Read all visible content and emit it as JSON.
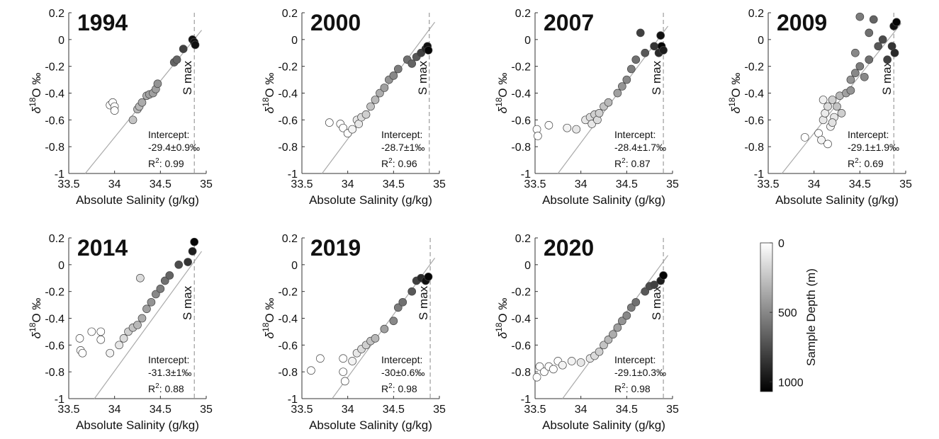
{
  "chart_data": [
    {
      "type": "scatter",
      "title": "1994",
      "xlabel": "Absolute Salinity (g/kg)",
      "ylabel": {
        "delta": "δ",
        "sup": "18",
        "rest": "O ‰"
      },
      "xlim": [
        33.5,
        35
      ],
      "xticks": [
        33.5,
        34,
        34.5,
        35
      ],
      "ylim": [
        -1,
        0.2
      ],
      "yticks": [
        -1,
        -0.8,
        -0.6,
        -0.4,
        -0.2,
        0,
        0.2
      ],
      "x": [
        33.95,
        33.98,
        34.0,
        34.0,
        34.2,
        34.25,
        34.27,
        34.3,
        34.35,
        34.38,
        34.42,
        34.45,
        34.47,
        34.65,
        34.68,
        34.75,
        34.85,
        34.87,
        34.88
      ],
      "y": [
        -0.49,
        -0.47,
        -0.5,
        -0.53,
        -0.6,
        -0.52,
        -0.5,
        -0.47,
        -0.42,
        -0.41,
        -0.4,
        -0.37,
        -0.33,
        -0.17,
        -0.15,
        -0.07,
        0,
        -0.02,
        -0.04
      ],
      "depth": [
        0,
        0,
        0,
        0,
        250,
        300,
        300,
        350,
        350,
        400,
        400,
        400,
        450,
        650,
        650,
        800,
        1000,
        1000,
        1000
      ],
      "fit_line": {
        "x": [
          33.68,
          34.95
        ],
        "y": [
          -1,
          0.07
        ]
      },
      "smax": {
        "value": 34.87,
        "label": "S max"
      },
      "intercept": {
        "label": "Intercept:",
        "text": "-29.4±0.9‰"
      },
      "r2": {
        "label": "R",
        "sup": "2",
        "text": ": 0.99"
      }
    },
    {
      "type": "scatter",
      "title": "2000",
      "xlabel": "Absolute Salinity (g/kg)",
      "ylabel": {
        "delta": "δ",
        "sup": "18",
        "rest": "O ‰"
      },
      "xlim": [
        33.5,
        35
      ],
      "xticks": [
        33.5,
        34,
        34.5,
        35
      ],
      "ylim": [
        -1,
        0.2
      ],
      "yticks": [
        -1,
        -0.8,
        -0.6,
        -0.4,
        -0.2,
        0,
        0.2
      ],
      "x": [
        33.8,
        33.92,
        33.95,
        34.0,
        34.05,
        34.1,
        34.12,
        34.15,
        34.2,
        34.25,
        34.3,
        34.35,
        34.4,
        34.45,
        34.5,
        34.55,
        34.65,
        34.7,
        34.75,
        34.8,
        34.85,
        34.87,
        34.88
      ],
      "y": [
        -0.62,
        -0.63,
        -0.66,
        -0.7,
        -0.67,
        -0.6,
        -0.63,
        -0.58,
        -0.56,
        -0.5,
        -0.45,
        -0.4,
        -0.36,
        -0.3,
        -0.27,
        -0.22,
        -0.15,
        -0.18,
        -0.13,
        -0.1,
        -0.07,
        -0.05,
        -0.08
      ],
      "depth": [
        0,
        0,
        0,
        0,
        50,
        100,
        100,
        150,
        200,
        250,
        300,
        350,
        400,
        450,
        500,
        550,
        600,
        650,
        700,
        800,
        900,
        1000,
        1050
      ],
      "fit_line": {
        "x": [
          33.72,
          34.95
        ],
        "y": [
          -1,
          0.13
        ]
      },
      "smax": {
        "value": 34.89,
        "label": "S max"
      },
      "intercept": {
        "label": "Intercept:",
        "text": "-28.7±1‰"
      },
      "r2": {
        "label": "R",
        "sup": "2",
        "text": ": 0.96"
      }
    },
    {
      "type": "scatter",
      "title": "2007",
      "xlabel": "Absolute Salinity (g/kg)",
      "ylabel": {
        "delta": "δ",
        "sup": "18",
        "rest": "O ‰"
      },
      "xlim": [
        33.5,
        35
      ],
      "xticks": [
        33.5,
        34,
        34.5,
        35
      ],
      "ylim": [
        -1,
        0.2
      ],
      "yticks": [
        -1,
        -0.8,
        -0.6,
        -0.4,
        -0.2,
        0,
        0.2
      ],
      "x": [
        33.52,
        33.53,
        33.65,
        33.85,
        33.95,
        34.05,
        34.1,
        34.12,
        34.15,
        34.18,
        34.2,
        34.25,
        34.3,
        34.4,
        34.45,
        34.5,
        34.55,
        34.6,
        34.65,
        34.7,
        34.8,
        34.85,
        34.87,
        34.88,
        34.9
      ],
      "y": [
        -0.67,
        -0.72,
        -0.64,
        -0.66,
        -0.67,
        -0.6,
        -0.58,
        -0.63,
        -0.56,
        -0.6,
        -0.55,
        -0.5,
        -0.47,
        -0.4,
        -0.35,
        -0.3,
        -0.22,
        -0.15,
        0.05,
        -0.1,
        -0.05,
        -0.1,
        0.03,
        -0.05,
        -0.08
      ],
      "depth": [
        0,
        0,
        0,
        50,
        100,
        100,
        150,
        100,
        200,
        150,
        200,
        250,
        300,
        400,
        450,
        500,
        550,
        600,
        800,
        700,
        850,
        900,
        1000,
        1050,
        950
      ],
      "fit_line": {
        "x": [
          33.75,
          34.95
        ],
        "y": [
          -1,
          0.1
        ]
      },
      "smax": {
        "value": 34.9,
        "label": "S max"
      },
      "intercept": {
        "label": "Intercept:",
        "text": "-28.4±1.7‰"
      },
      "r2": {
        "label": "R",
        "sup": "2",
        "text": ": 0.87"
      }
    },
    {
      "type": "scatter",
      "title": "2009",
      "xlabel": "Absolute Salinity (g/kg)",
      "ylabel": {
        "delta": "δ",
        "sup": "18",
        "rest": "O ‰"
      },
      "xlim": [
        33.5,
        35
      ],
      "xticks": [
        33.5,
        34,
        34.5,
        35
      ],
      "ylim": [
        -1,
        0.2
      ],
      "yticks": [
        -1,
        -0.8,
        -0.6,
        -0.4,
        -0.2,
        0,
        0.2
      ],
      "x": [
        33.9,
        34.05,
        34.08,
        34.1,
        34.12,
        34.15,
        34.18,
        34.2,
        34.22,
        34.25,
        34.28,
        34.3,
        34.15,
        34.1,
        34.2,
        34.35,
        34.4,
        34.45,
        34.5,
        34.55,
        34.6,
        34.4,
        34.5,
        34.65,
        34.7,
        34.75,
        34.8,
        34.85,
        34.87,
        34.88,
        34.6,
        34.45,
        34.9
      ],
      "y": [
        -0.73,
        -0.7,
        -0.75,
        -0.6,
        -0.55,
        -0.5,
        -0.65,
        -0.45,
        -0.58,
        -0.5,
        -0.42,
        -0.55,
        -0.78,
        -0.45,
        -0.62,
        -0.4,
        -0.3,
        -0.25,
        -0.2,
        -0.28,
        -0.15,
        -0.38,
        0.17,
        0.15,
        -0.05,
        0,
        -0.15,
        -0.05,
        0.1,
        -0.1,
        0.05,
        -0.1,
        0.13
      ],
      "depth": [
        0,
        0,
        50,
        100,
        80,
        150,
        50,
        200,
        100,
        250,
        300,
        200,
        0,
        60,
        120,
        400,
        450,
        500,
        550,
        500,
        600,
        450,
        550,
        650,
        700,
        750,
        800,
        850,
        1000,
        900,
        600,
        500,
        1050
      ],
      "fit_line": {
        "x": [
          33.65,
          34.95
        ],
        "y": [
          -1,
          0.12
        ]
      },
      "smax": {
        "value": 34.87,
        "label": "S max"
      },
      "intercept": {
        "label": "Intercept:",
        "text": "-29.1±1.9‰"
      },
      "r2": {
        "label": "R",
        "sup": "2",
        "text": ": 0.69"
      }
    },
    {
      "type": "scatter",
      "title": "2014",
      "xlabel": "Absolute Salinity (g/kg)",
      "ylabel": {
        "delta": "δ",
        "sup": "18",
        "rest": "O ‰"
      },
      "xlim": [
        33.5,
        35
      ],
      "xticks": [
        33.5,
        34,
        34.5,
        35
      ],
      "ylim": [
        -1,
        0.2
      ],
      "yticks": [
        -1,
        -0.8,
        -0.6,
        -0.4,
        -0.2,
        0,
        0.2
      ],
      "x": [
        33.62,
        33.63,
        33.65,
        33.75,
        33.85,
        33.85,
        33.95,
        34.05,
        34.1,
        34.15,
        34.2,
        34.25,
        34.28,
        34.3,
        34.35,
        34.4,
        34.45,
        34.5,
        34.55,
        34.6,
        34.7,
        34.8,
        34.85,
        34.87
      ],
      "y": [
        -0.55,
        -0.64,
        -0.66,
        -0.5,
        -0.5,
        -0.56,
        -0.66,
        -0.6,
        -0.55,
        -0.5,
        -0.47,
        -0.45,
        -0.1,
        -0.4,
        -0.33,
        -0.28,
        -0.22,
        -0.18,
        -0.12,
        -0.08,
        0,
        0.02,
        0.1,
        0.17
      ],
      "depth": [
        0,
        0,
        0,
        0,
        0,
        0,
        50,
        100,
        150,
        200,
        250,
        300,
        150,
        350,
        400,
        450,
        500,
        550,
        600,
        650,
        750,
        850,
        950,
        1050
      ],
      "fit_line": {
        "x": [
          33.78,
          34.95
        ],
        "y": [
          -1,
          0.1
        ]
      },
      "smax": {
        "value": 34.87,
        "label": "S max"
      },
      "intercept": {
        "label": "Intercept:",
        "text": "-31.3±1‰"
      },
      "r2": {
        "label": "R",
        "sup": "2",
        "text": ": 0.88"
      }
    },
    {
      "type": "scatter",
      "title": "2019",
      "xlabel": "Absolute Salinity (g/kg)",
      "ylabel": {
        "delta": "δ",
        "sup": "18",
        "rest": "O ‰"
      },
      "xlim": [
        33.5,
        35
      ],
      "xticks": [
        33.5,
        34,
        34.5,
        35
      ],
      "ylim": [
        -1,
        0.2
      ],
      "yticks": [
        -1,
        -0.8,
        -0.6,
        -0.4,
        -0.2,
        0,
        0.2
      ],
      "x": [
        33.6,
        33.7,
        33.95,
        33.95,
        33.97,
        34.05,
        34.1,
        34.15,
        34.2,
        34.25,
        34.3,
        34.4,
        34.5,
        34.55,
        34.6,
        34.7,
        34.75,
        34.8,
        34.85,
        34.88
      ],
      "y": [
        -0.79,
        -0.7,
        -0.7,
        -0.8,
        -0.87,
        -0.72,
        -0.66,
        -0.63,
        -0.6,
        -0.57,
        -0.55,
        -0.48,
        -0.42,
        -0.32,
        -0.28,
        -0.2,
        -0.12,
        -0.1,
        -0.12,
        -0.09
      ],
      "depth": [
        0,
        0,
        0,
        0,
        0,
        50,
        100,
        150,
        200,
        250,
        300,
        400,
        500,
        550,
        600,
        700,
        800,
        900,
        1000,
        1050
      ],
      "fit_line": {
        "x": [
          33.83,
          34.95
        ],
        "y": [
          -1,
          0.05
        ]
      },
      "smax": {
        "value": 34.9,
        "label": "S max"
      },
      "intercept": {
        "label": "Intercept:",
        "text": "-30±0.6‰"
      },
      "r2": {
        "label": "R",
        "sup": "2",
        "text": ": 0.98"
      }
    },
    {
      "type": "scatter",
      "title": "2020",
      "xlabel": "Absolute Salinity (g/kg)",
      "ylabel": {
        "delta": "δ",
        "sup": "18",
        "rest": "O ‰"
      },
      "xlim": [
        33.5,
        35
      ],
      "xticks": [
        33.5,
        34,
        34.5,
        35
      ],
      "ylim": [
        -1,
        0.2
      ],
      "yticks": [
        -1,
        -0.8,
        -0.6,
        -0.4,
        -0.2,
        0,
        0.2
      ],
      "x": [
        33.52,
        33.55,
        33.6,
        33.65,
        33.7,
        33.75,
        33.8,
        33.9,
        34.0,
        34.1,
        34.15,
        34.2,
        34.25,
        34.3,
        34.35,
        34.4,
        34.45,
        34.5,
        34.55,
        34.6,
        34.7,
        34.75,
        34.8,
        34.87,
        34.9
      ],
      "y": [
        -0.84,
        -0.76,
        -0.8,
        -0.76,
        -0.78,
        -0.72,
        -0.75,
        -0.72,
        -0.73,
        -0.7,
        -0.68,
        -0.65,
        -0.6,
        -0.56,
        -0.52,
        -0.47,
        -0.42,
        -0.38,
        -0.32,
        -0.28,
        -0.2,
        -0.16,
        -0.15,
        -0.12,
        -0.08
      ],
      "depth": [
        0,
        0,
        0,
        0,
        0,
        0,
        50,
        50,
        100,
        100,
        150,
        200,
        250,
        300,
        350,
        400,
        450,
        500,
        550,
        600,
        700,
        750,
        800,
        950,
        1050
      ],
      "fit_line": {
        "x": [
          33.8,
          34.95
        ],
        "y": [
          -1,
          0.07
        ]
      },
      "smax": {
        "value": 34.9,
        "label": "S max"
      },
      "intercept": {
        "label": "Intercept:",
        "text": "-29.1±0.3‰"
      },
      "r2": {
        "label": "R",
        "sup": "2",
        "text": ": 0.98"
      }
    },
    {
      "type": "colorbar",
      "label": "Sample Depth (m)",
      "clim": [
        0,
        1070
      ],
      "ticks": [
        0,
        500,
        1000
      ],
      "colors": [
        "#ffffff",
        "#000000"
      ]
    }
  ]
}
